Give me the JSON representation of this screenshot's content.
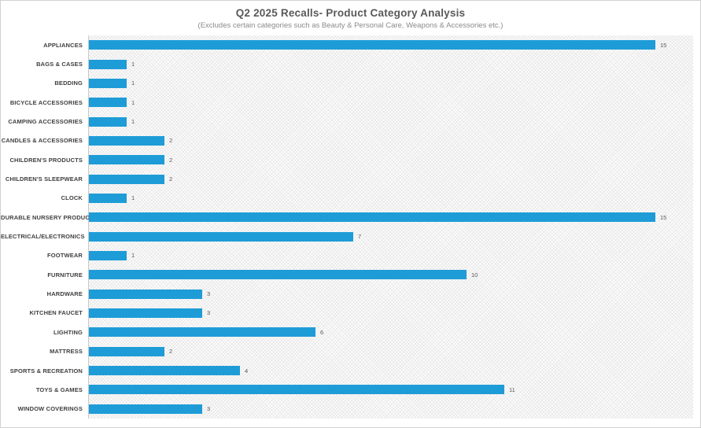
{
  "header": {
    "title": "Q2 2025 Recalls- Product Category Analysis",
    "subtitle": "(Excludes certain categories such as Beauty & Personal Care, Weapons & Accessories etc.)"
  },
  "chart_data": {
    "type": "bar",
    "orientation": "horizontal",
    "title": "Q2 2025 Recalls- Product Category Analysis",
    "subtitle": "(Excludes certain categories such as Beauty & Personal Care, Weapons & Accessories etc.)",
    "categories": [
      "APPLIANCES",
      "BAGS & CASES",
      "BEDDING",
      "BICYCLE ACCESSORIES",
      "CAMPING ACCESSORIES",
      "CANDLES & ACCESSORIES",
      "CHILDREN'S PRODUCTS",
      "CHILDREN'S SLEEPWEAR",
      "CLOCK",
      "DURABLE NURSERY PRODUCT",
      "ELECTRICAL/ELECTRONICS",
      "FOOTWEAR",
      "FURNITURE",
      "HARDWARE",
      "KITCHEN FAUCET",
      "LIGHTING",
      "MATTRESS",
      "SPORTS & RECREATION",
      "TOYS & GAMES",
      "WINDOW COVERINGS"
    ],
    "values": [
      15,
      1,
      1,
      1,
      1,
      2,
      2,
      2,
      1,
      15,
      7,
      1,
      10,
      3,
      3,
      6,
      2,
      4,
      11,
      3
    ],
    "xlabel": "",
    "ylabel": "",
    "xlim": [
      0,
      16
    ],
    "grid": false,
    "legend": false,
    "data_labels": true,
    "bar_color": "#1E9CD7"
  },
  "colors": {
    "bar": "#1E9CD7",
    "category_label": "#404040",
    "value_label": "#595959",
    "title": "#595959",
    "subtitle": "#8a8a8a",
    "frame_border": "#d2d2d2",
    "axis_line": "#c9c9c9"
  }
}
